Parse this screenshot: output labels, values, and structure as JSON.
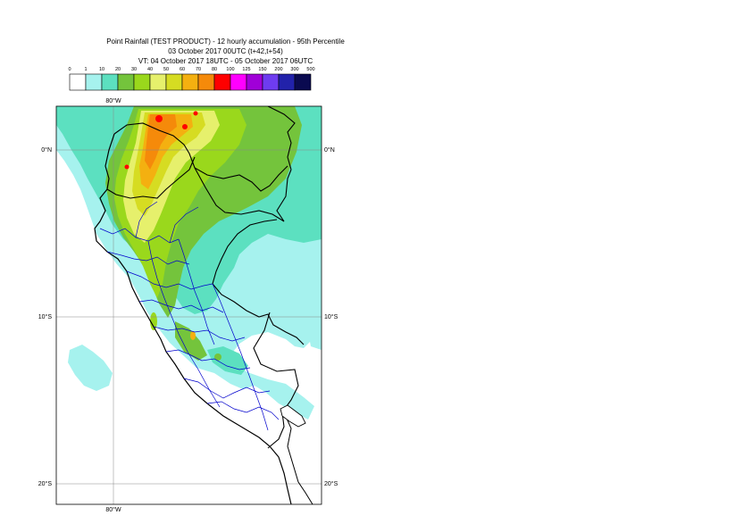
{
  "title": {
    "line1": "Point Rainfall (TEST PRODUCT) - 12 hourly accumulation - 95th Percentile",
    "line2": "03 October 2017 00UTC (t+42,t+54)",
    "line3": "VT: 04 October 2017 18UTC - 05 October 2017 06UTC"
  },
  "legend": {
    "ticks": [
      "0",
      "1",
      "10",
      "20",
      "30",
      "40",
      "50",
      "60",
      "70",
      "80",
      "100",
      "125",
      "150",
      "200",
      "300",
      "500"
    ],
    "colors": [
      "#ffffff",
      "#a6f2ee",
      "#5ce0c0",
      "#74c43c",
      "#9ad81c",
      "#e6f06c",
      "#d6dc22",
      "#f4b010",
      "#f58a0a",
      "#ff0000",
      "#ff00ff",
      "#a000d8",
      "#6e3cf0",
      "#2222aa",
      "#0a0a50"
    ]
  },
  "map": {
    "lon_labels_top": [
      "80°W"
    ],
    "lon_labels_bottom": [
      "80°W"
    ],
    "lat_labels_left": [
      "0°N",
      "10°S",
      "20°S"
    ],
    "lat_labels_right": [
      "0°N",
      "10°S",
      "20°S"
    ],
    "colors": {
      "sea_light": "#a6f2ee",
      "rain_20": "#5ce0c0",
      "rain_30": "#74c43c",
      "rain_40": "#9ad81c",
      "rain_50": "#e6f06c",
      "rain_60": "#d6dc22",
      "rain_70": "#f4b010",
      "rain_80": "#f58a0a",
      "rain_100": "#ff0000",
      "border": "#000000",
      "region": "#0000cc",
      "grid": "#888888"
    }
  }
}
